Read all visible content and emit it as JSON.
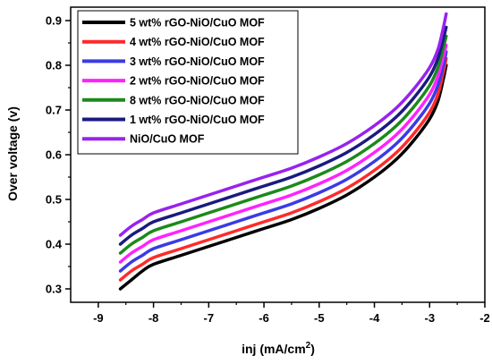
{
  "chart_data": {
    "type": "line",
    "xlabel": "inj (mA/cm",
    "xlabel_sup": "2",
    "xlabel_end": ")",
    "ylabel": "Over voltage (v)",
    "xlim": [
      -9.5,
      -2
    ],
    "ylim": [
      0.27,
      0.93
    ],
    "x_ticks": [
      -9,
      -8,
      -7,
      -6,
      -5,
      -4,
      -3,
      -2
    ],
    "y_ticks": [
      0.3,
      0.4,
      0.5,
      0.6,
      0.7,
      0.8,
      0.9
    ],
    "grid": false,
    "legend_position": "top-left",
    "series": [
      {
        "name": "5 wt% rGO-NiO/CuO MOF",
        "color": "#000000",
        "x": [
          -8.6,
          -8.4,
          -8.2,
          -8.0,
          -7.5,
          -7.0,
          -6.5,
          -6.0,
          -5.5,
          -5.0,
          -4.5,
          -4.0,
          -3.6,
          -3.3,
          -3.0,
          -2.85,
          -2.75,
          -2.7
        ],
        "y": [
          0.3,
          0.32,
          0.34,
          0.355,
          0.375,
          0.395,
          0.415,
          0.435,
          0.455,
          0.48,
          0.51,
          0.55,
          0.59,
          0.63,
          0.68,
          0.72,
          0.77,
          0.8
        ]
      },
      {
        "name": "4 wt% rGO-NiO/CuO MOF",
        "color": "#ff2a2a",
        "x": [
          -8.6,
          -8.4,
          -8.2,
          -8.0,
          -7.5,
          -7.0,
          -6.5,
          -6.0,
          -5.5,
          -5.0,
          -4.5,
          -4.0,
          -3.6,
          -3.3,
          -3.0,
          -2.85,
          -2.75,
          -2.7
        ],
        "y": [
          0.32,
          0.34,
          0.355,
          0.37,
          0.39,
          0.41,
          0.43,
          0.45,
          0.47,
          0.495,
          0.525,
          0.565,
          0.605,
          0.645,
          0.695,
          0.735,
          0.785,
          0.815
        ]
      },
      {
        "name": "3 wt% rGO-NiO/CuO MOF",
        "color": "#3a3ae6",
        "x": [
          -8.6,
          -8.4,
          -8.2,
          -8.0,
          -7.5,
          -7.0,
          -6.5,
          -6.0,
          -5.5,
          -5.0,
          -4.5,
          -4.0,
          -3.6,
          -3.3,
          -3.0,
          -2.85,
          -2.75,
          -2.7
        ],
        "y": [
          0.34,
          0.36,
          0.375,
          0.39,
          0.41,
          0.43,
          0.45,
          0.47,
          0.49,
          0.515,
          0.545,
          0.585,
          0.625,
          0.665,
          0.715,
          0.755,
          0.8,
          0.83
        ]
      },
      {
        "name": "2 wt% rGO-NiO/CuO MOF",
        "color": "#ff22ff",
        "x": [
          -8.6,
          -8.4,
          -8.2,
          -8.0,
          -7.5,
          -7.0,
          -6.5,
          -6.0,
          -5.5,
          -5.0,
          -4.5,
          -4.0,
          -3.6,
          -3.3,
          -3.0,
          -2.85,
          -2.75,
          -2.7
        ],
        "y": [
          0.36,
          0.38,
          0.395,
          0.41,
          0.43,
          0.45,
          0.47,
          0.49,
          0.51,
          0.535,
          0.565,
          0.605,
          0.645,
          0.685,
          0.735,
          0.775,
          0.82,
          0.845
        ]
      },
      {
        "name": "8 wt% rGO-NiO/CuO MOF",
        "color": "#1a8a1a",
        "x": [
          -8.6,
          -8.4,
          -8.2,
          -8.0,
          -7.5,
          -7.0,
          -6.5,
          -6.0,
          -5.5,
          -5.0,
          -4.5,
          -4.0,
          -3.6,
          -3.3,
          -3.0,
          -2.85,
          -2.75,
          -2.7
        ],
        "y": [
          0.38,
          0.4,
          0.415,
          0.43,
          0.45,
          0.47,
          0.49,
          0.51,
          0.53,
          0.555,
          0.585,
          0.625,
          0.665,
          0.705,
          0.755,
          0.795,
          0.84,
          0.865
        ]
      },
      {
        "name": "1 wt% rGO-NiO/CuO MOF",
        "color": "#1a1a80",
        "x": [
          -8.6,
          -8.4,
          -8.2,
          -8.0,
          -7.5,
          -7.0,
          -6.5,
          -6.0,
          -5.5,
          -5.0,
          -4.5,
          -4.0,
          -3.6,
          -3.3,
          -3.0,
          -2.85,
          -2.75,
          -2.7
        ],
        "y": [
          0.4,
          0.42,
          0.435,
          0.45,
          0.47,
          0.49,
          0.51,
          0.53,
          0.55,
          0.575,
          0.605,
          0.645,
          0.685,
          0.725,
          0.775,
          0.815,
          0.86,
          0.885
        ]
      },
      {
        "name": "NiO/CuO MOF",
        "color": "#9922ee",
        "x": [
          -8.6,
          -8.4,
          -8.2,
          -8.0,
          -7.5,
          -7.0,
          -6.5,
          -6.0,
          -5.5,
          -5.0,
          -4.5,
          -4.0,
          -3.6,
          -3.3,
          -3.0,
          -2.85,
          -2.75,
          -2.7
        ],
        "y": [
          0.42,
          0.44,
          0.455,
          0.47,
          0.49,
          0.51,
          0.53,
          0.55,
          0.57,
          0.595,
          0.625,
          0.665,
          0.705,
          0.745,
          0.795,
          0.835,
          0.885,
          0.915
        ]
      }
    ]
  }
}
